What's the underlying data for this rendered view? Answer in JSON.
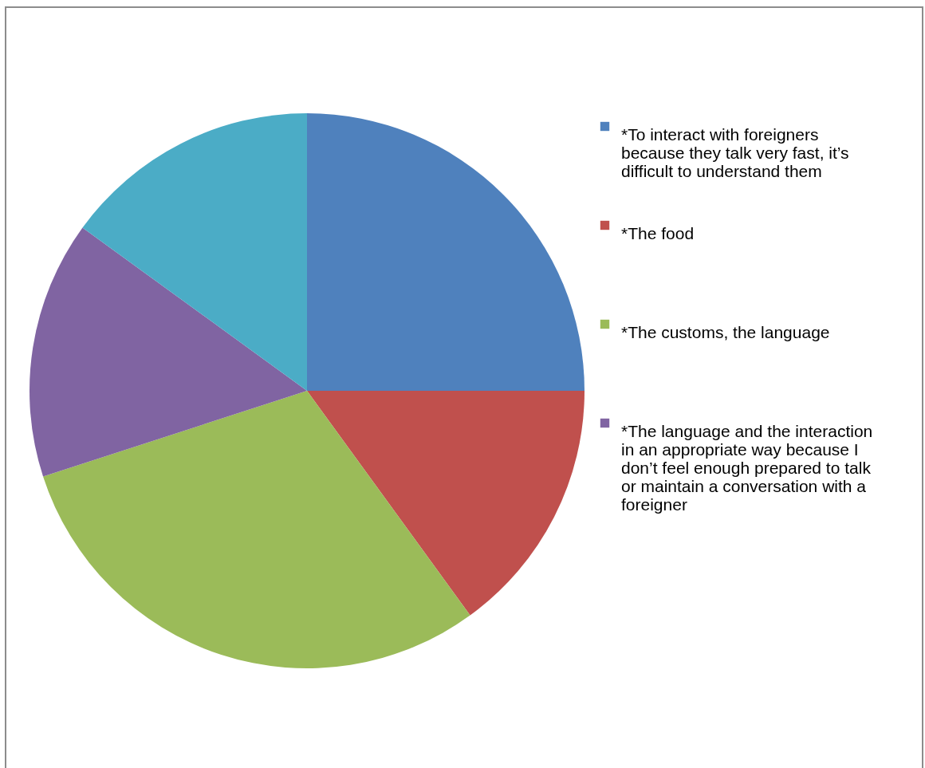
{
  "chart_data": {
    "type": "pie",
    "categories": [
      "*To interact with foreigners because they talk very fast, it’s difficult to understand them",
      "*The food",
      "*The customs, the language",
      "*The language and the interaction in an appropriate way because I don’t feel enough prepared to talk or maintain a conversation with a foreigner",
      null
    ],
    "values": [
      25,
      15,
      30,
      15,
      15
    ],
    "colors": [
      "#4f81bd",
      "#c0504d",
      "#9bbb59",
      "#8064a2",
      "#4bacc6"
    ],
    "legend": "right"
  }
}
